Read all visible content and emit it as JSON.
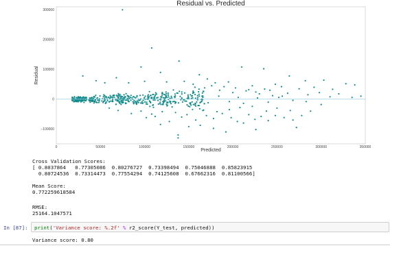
{
  "chart_data": {
    "type": "scatter",
    "title": "Residual vs. Predicted",
    "xlabel": "Predicted",
    "ylabel": "Residual",
    "xlim": [
      0,
      350000
    ],
    "ylim": [
      -150000,
      310000
    ],
    "x_ticks": [
      0,
      50000,
      100000,
      150000,
      200000,
      250000,
      300000,
      350000
    ],
    "x_tick_labels": [
      "0",
      "50000",
      "100000",
      "150000",
      "200000",
      "250000",
      "300000",
      "350000"
    ],
    "y_ticks": [
      -100000,
      0,
      100000,
      200000,
      300000
    ],
    "y_tick_labels": [
      "−100000",
      "0",
      "100000",
      "200000",
      "300000"
    ],
    "reference_line_y": 0,
    "grid": false,
    "point_color": "#138b8b",
    "line_color": "#9ccfe0",
    "points": [
      [
        75000,
        300000
      ],
      [
        108000,
        172000
      ],
      [
        139000,
        128000
      ],
      [
        96000,
        108000
      ],
      [
        118000,
        90000
      ],
      [
        162000,
        82000
      ],
      [
        171000,
        68000
      ],
      [
        210000,
        108000
      ],
      [
        235000,
        102000
      ],
      [
        264000,
        78000
      ],
      [
        282000,
        62000
      ],
      [
        303000,
        64000
      ],
      [
        328000,
        52000
      ],
      [
        338000,
        48000
      ],
      [
        313000,
        33000
      ],
      [
        345000,
        10000
      ],
      [
        30000,
        78000
      ],
      [
        45000,
        62000
      ],
      [
        55000,
        55000
      ],
      [
        68000,
        72000
      ],
      [
        82000,
        55000
      ],
      [
        100000,
        60000
      ],
      [
        125000,
        58000
      ],
      [
        145000,
        60000
      ],
      [
        155000,
        50000
      ],
      [
        180000,
        55000
      ],
      [
        195000,
        58000
      ],
      [
        222000,
        45000
      ],
      [
        248000,
        50000
      ],
      [
        255000,
        42000
      ],
      [
        275000,
        35000
      ],
      [
        292000,
        40000
      ],
      [
        298000,
        22000
      ],
      [
        185000,
        30000
      ],
      [
        200000,
        22000
      ],
      [
        215000,
        28000
      ],
      [
        230000,
        18000
      ],
      [
        242000,
        30000
      ],
      [
        262000,
        20000
      ],
      [
        285000,
        15000
      ],
      [
        135000,
        -45000
      ],
      [
        142000,
        -60000
      ],
      [
        148000,
        -52000
      ],
      [
        158000,
        -70000
      ],
      [
        170000,
        -55000
      ],
      [
        178000,
        -65000
      ],
      [
        188000,
        -48000
      ],
      [
        198000,
        -62000
      ],
      [
        205000,
        -75000
      ],
      [
        212000,
        -80000
      ],
      [
        218000,
        -52000
      ],
      [
        225000,
        -68000
      ],
      [
        232000,
        -58000
      ],
      [
        240000,
        -72000
      ],
      [
        248000,
        -55000
      ],
      [
        258000,
        -62000
      ],
      [
        268000,
        -70000
      ],
      [
        278000,
        -55000
      ],
      [
        288000,
        -40000
      ],
      [
        272000,
        -95000
      ],
      [
        150000,
        -92000
      ],
      [
        163000,
        -88000
      ],
      [
        178000,
        -98000
      ],
      [
        192000,
        -110000
      ],
      [
        226000,
        -102000
      ],
      [
        112000,
        -58000
      ],
      [
        120000,
        -42000
      ],
      [
        128000,
        -75000
      ],
      [
        138000,
        -120000
      ],
      [
        138000,
        -130000
      ],
      [
        108000,
        -50000
      ],
      [
        118000,
        -85000
      ],
      [
        85000,
        -48000
      ],
      [
        96000,
        -40000
      ],
      [
        70000,
        -38000
      ],
      [
        60000,
        -30000
      ],
      [
        102000,
        -62000
      ],
      [
        166000,
        -38000
      ],
      [
        182000,
        -42000
      ],
      [
        196000,
        -35000
      ],
      [
        208000,
        -28000
      ],
      [
        222000,
        -24000
      ],
      [
        238000,
        -40000
      ],
      [
        250000,
        -30000
      ],
      [
        265000,
        -38000
      ],
      [
        157000,
        40000
      ],
      [
        168000,
        38000
      ],
      [
        176000,
        45000
      ],
      [
        190000,
        42000
      ],
      [
        203000,
        38000
      ],
      [
        218000,
        32000
      ],
      [
        226000,
        24000
      ],
      [
        236000,
        34000
      ],
      [
        245000,
        12000
      ],
      [
        252000,
        6000
      ],
      [
        283000,
        -8000
      ],
      [
        300000,
        -18000
      ],
      [
        310000,
        8000
      ],
      [
        320000,
        18000
      ],
      [
        335000,
        6000
      ],
      [
        160000,
        12000
      ],
      [
        172000,
        -12000
      ],
      [
        184000,
        10000
      ],
      [
        196000,
        -8000
      ],
      [
        206000,
        6000
      ],
      [
        212000,
        -14000
      ],
      [
        228000,
        4000
      ],
      [
        240000,
        -10000
      ],
      [
        256000,
        10000
      ],
      [
        268000,
        -4000
      ]
    ]
  },
  "output": {
    "cv_scores_text": "Cross Validation Scores:\n[ 0.8037864   0.77305086  0.80276727  0.73398494  0.75046888  0.85823915\n  0.80724536  0.73314473  0.77554294  0.74125608  0.67662316  0.81100566]",
    "mean_score_text": "Mean Score:\n0.772259618584",
    "rmse_text": "RMSE:\n25164.1047571",
    "variance_text": "Variance score: 0.80"
  },
  "cell": {
    "prompt": "In [87]:",
    "code": {
      "fn": "print",
      "open": "(",
      "str": "'Variance score: %.2f'",
      "op": " % ",
      "rest": "r2_score(Y_test, predicted))"
    }
  }
}
